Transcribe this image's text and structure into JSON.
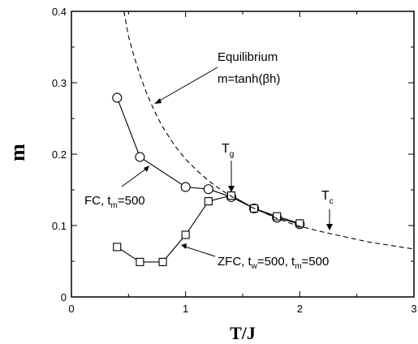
{
  "chart_data": {
    "type": "line",
    "xlabel": "T/J",
    "ylabel": "m",
    "xlim": [
      0,
      3
    ],
    "ylim": [
      0,
      0.4
    ],
    "x_ticks": [
      "0",
      "1",
      "2",
      "3"
    ],
    "y_ticks": [
      "0",
      "0.1",
      "0.2",
      "0.3",
      "0.4"
    ],
    "grid": false,
    "series": [
      {
        "name": "FC",
        "marker": "circle",
        "line": "solid",
        "x": [
          0.4,
          0.6,
          1.0,
          1.2,
          1.4,
          1.6,
          1.8,
          2.0
        ],
        "y": [
          0.279,
          0.196,
          0.154,
          0.151,
          0.14,
          0.124,
          0.111,
          0.102
        ]
      },
      {
        "name": "ZFC",
        "marker": "square",
        "line": "solid",
        "x": [
          0.4,
          0.6,
          0.8,
          1.0,
          1.2,
          1.4,
          1.6,
          1.8,
          2.0
        ],
        "y": [
          0.07,
          0.049,
          0.049,
          0.087,
          0.134,
          0.142,
          0.124,
          0.113,
          0.103
        ]
      },
      {
        "name": "Equilibrium",
        "line": "dashed",
        "x": [
          0.46,
          0.5,
          0.55,
          0.6,
          0.65,
          0.7,
          0.75,
          0.8,
          0.9,
          1.0,
          1.1,
          1.2,
          1.3,
          1.4,
          1.5,
          1.6,
          1.7,
          1.8,
          1.9,
          2.0,
          2.2,
          2.4,
          2.6,
          2.8,
          3.0
        ],
        "y": [
          0.4,
          0.365,
          0.336,
          0.311,
          0.289,
          0.27,
          0.253,
          0.238,
          0.213,
          0.193,
          0.177,
          0.163,
          0.151,
          0.141,
          0.132,
          0.124,
          0.117,
          0.11,
          0.104,
          0.099,
          0.091,
          0.084,
          0.077,
          0.072,
          0.067
        ]
      }
    ],
    "annotations": [
      {
        "id": "eq1",
        "text": "Equilibrium"
      },
      {
        "id": "eq2",
        "text": "m=tanh(βh)"
      },
      {
        "id": "fc_main",
        "text": "FC, t",
        "sub": "m",
        "suffix": "=500"
      },
      {
        "id": "zfc_main",
        "text": "ZFC, t",
        "sub1": "w",
        "mid": "=500, t",
        "sub2": "m",
        "suffix": "=500"
      },
      {
        "id": "tg",
        "text": "T",
        "sub": "g"
      },
      {
        "id": "tc",
        "text": "T",
        "sub": "c"
      }
    ]
  }
}
